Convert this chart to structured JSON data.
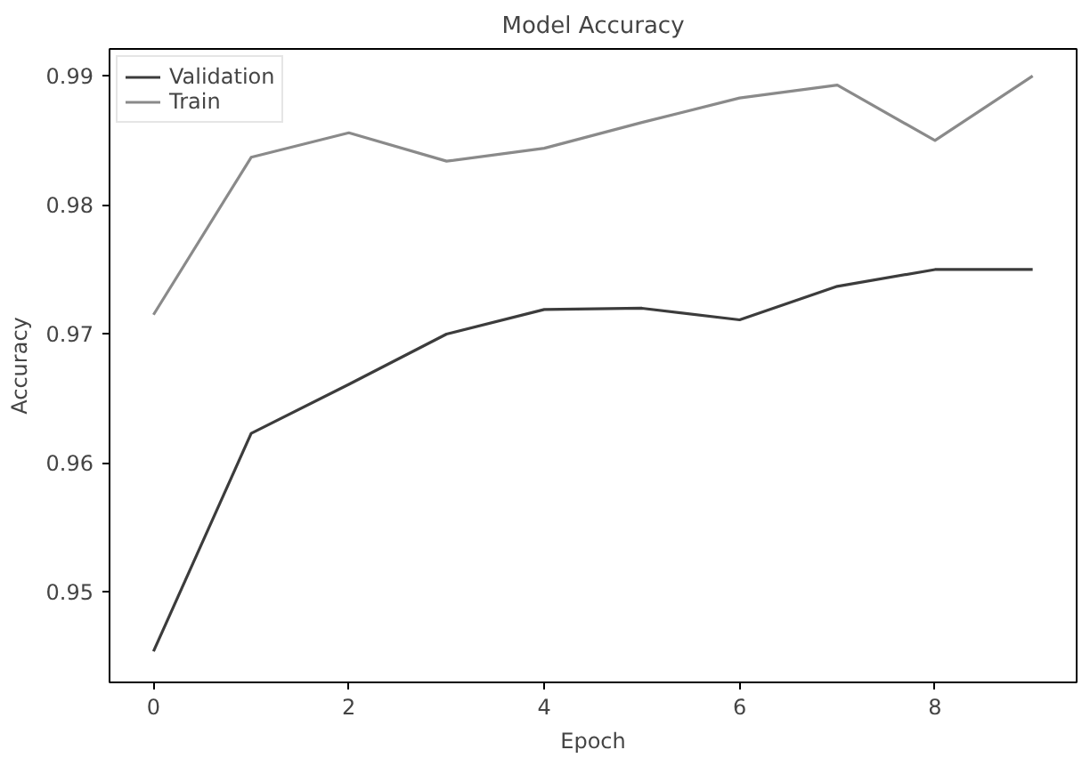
{
  "chart_data": {
    "type": "line",
    "title": "Model Accuracy",
    "xlabel": "Epoch",
    "ylabel": "Accuracy",
    "x": [
      0,
      1,
      2,
      3,
      4,
      5,
      6,
      7,
      8,
      9
    ],
    "series": [
      {
        "name": "Validation",
        "color": "#3c3c3c",
        "values": [
          0.9454,
          0.9623,
          0.9661,
          0.97,
          0.9719,
          0.972,
          0.9711,
          0.9737,
          0.975,
          0.975
        ]
      },
      {
        "name": "Train",
        "color": "#8a8a8a",
        "values": [
          0.9715,
          0.9837,
          0.9856,
          0.9834,
          0.9844,
          0.9864,
          0.9883,
          0.9893,
          0.985,
          0.99
        ]
      }
    ],
    "xlim": [
      -0.45,
      9.45
    ],
    "xticks": [
      0,
      2,
      4,
      6,
      8
    ],
    "ylim": [
      0.943,
      0.9921
    ],
    "yticks": [
      0.95,
      0.96,
      0.97,
      0.98,
      0.99
    ],
    "grid": false,
    "legend": "top left",
    "line_style": "solid"
  }
}
